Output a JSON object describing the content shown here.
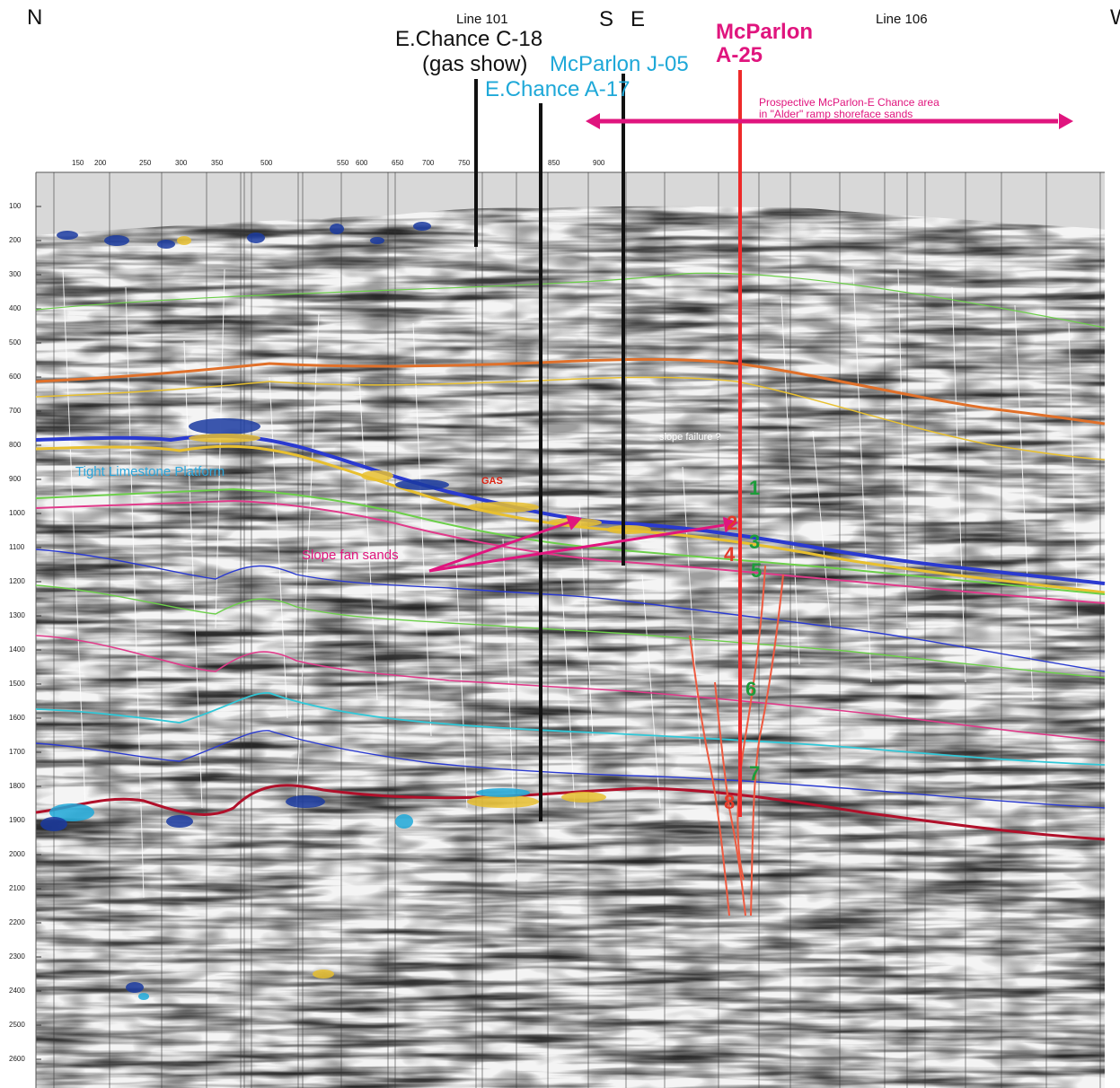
{
  "header": {
    "compass_n": "N",
    "compass_s": "S",
    "compass_e": "E",
    "compass_w": "W",
    "line_101": "Line 101",
    "line_106": "Line 106"
  },
  "wells": {
    "c18_name": "E.Chance C-18",
    "c18_note": "(gas show)",
    "j05": "McParlon J-05",
    "a17": "E.Chance A-17",
    "a25_line1": "McParlon",
    "a25_line2": "A-25"
  },
  "annotations": {
    "prospect_line1": "Prospective McParlon-E Chance area",
    "prospect_line2": "in \"Alder\" ramp shoreface sands",
    "slope_fan": "Slope fan sands",
    "tight_limestone": "Tight Limestone Platform",
    "gas": "GAS",
    "slope_failure": "slope failure ?"
  },
  "zone_numbers": [
    {
      "label": "1",
      "color": "green"
    },
    {
      "label": "2",
      "color": "red"
    },
    {
      "label": "3",
      "color": "green"
    },
    {
      "label": "4",
      "color": "red"
    },
    {
      "label": "5",
      "color": "green"
    },
    {
      "label": "6",
      "color": "green"
    },
    {
      "label": "7",
      "color": "green"
    },
    {
      "label": "8",
      "color": "red"
    }
  ],
  "time_ticks": [
    "100",
    "200",
    "300",
    "400",
    "500",
    "600",
    "700",
    "800",
    "900",
    "1000",
    "1100",
    "1200",
    "1300",
    "1400",
    "1500",
    "1600",
    "1700",
    "1800",
    "1900",
    "2000",
    "2100",
    "2200",
    "2300",
    "2400",
    "2500",
    "2600"
  ],
  "trace_ticks": [
    "150",
    "200",
    "250",
    "300",
    "350",
    "500",
    "550",
    "600",
    "650",
    "700",
    "750",
    "850",
    "900"
  ],
  "colors": {
    "magenta": "#e0157e",
    "cyan_label": "#1ea8d8",
    "well_red": "#ee2a2a",
    "fault_red": "#ee5a40",
    "horizon_orange": "#e0702a",
    "horizon_yellow": "#e8c030",
    "horizon_green": "#6ccf4a",
    "horizon_blue": "#2a3ad0",
    "horizon_pink": "#e03a8a",
    "horizon_cyan": "#30c8d8",
    "horizon_darkred": "#b0102a"
  }
}
